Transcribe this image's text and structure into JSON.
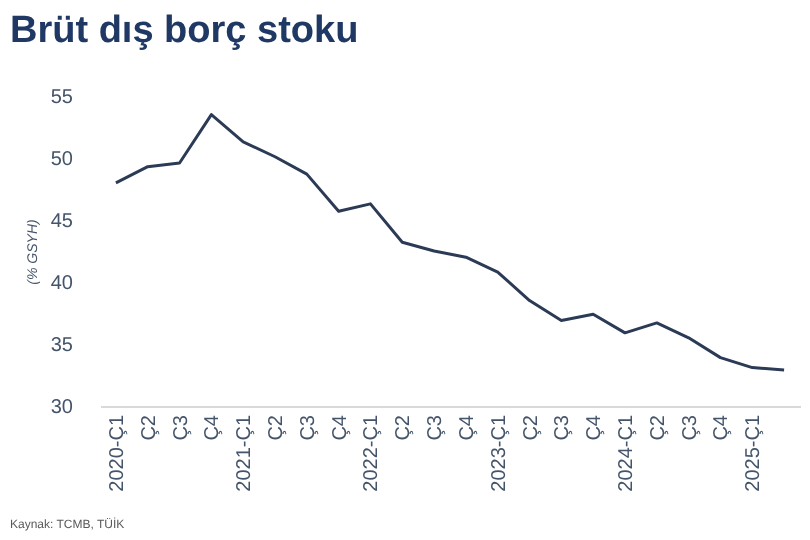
{
  "chart_data": {
    "type": "line",
    "title": "Brüt dış borç stoku",
    "ylabel": "(% GSYH)",
    "categories": [
      "2020-Ç1",
      "Ç2",
      "Ç3",
      "Ç4",
      "2021-Ç1",
      "Ç2",
      "Ç3",
      "Ç4",
      "2022-Ç1",
      "Ç2",
      "Ç3",
      "Ç4",
      "2023-Ç1",
      "Ç2",
      "Ç3",
      "Ç4",
      "2024-Ç1",
      "Ç2",
      "Ç3",
      "Ç4",
      "2025-Ç1",
      null
    ],
    "series": [
      {
        "color": "#2b3a55",
        "values": [
          48.0,
          49.3,
          49.6,
          53.5,
          51.3,
          50.1,
          48.7,
          45.7,
          46.3,
          43.2,
          42.5,
          42.0,
          40.8,
          38.5,
          36.9,
          37.4,
          35.9,
          36.7,
          35.5,
          33.9,
          33.1,
          32.9
        ]
      }
    ],
    "ylim": [
      30,
      55
    ],
    "yticks": [
      30,
      35,
      40,
      45,
      50,
      55
    ],
    "grid": false,
    "line_style": "solid",
    "marker": "none",
    "annotations": [
      "Kaynak: TCMB, TÜİK"
    ]
  }
}
